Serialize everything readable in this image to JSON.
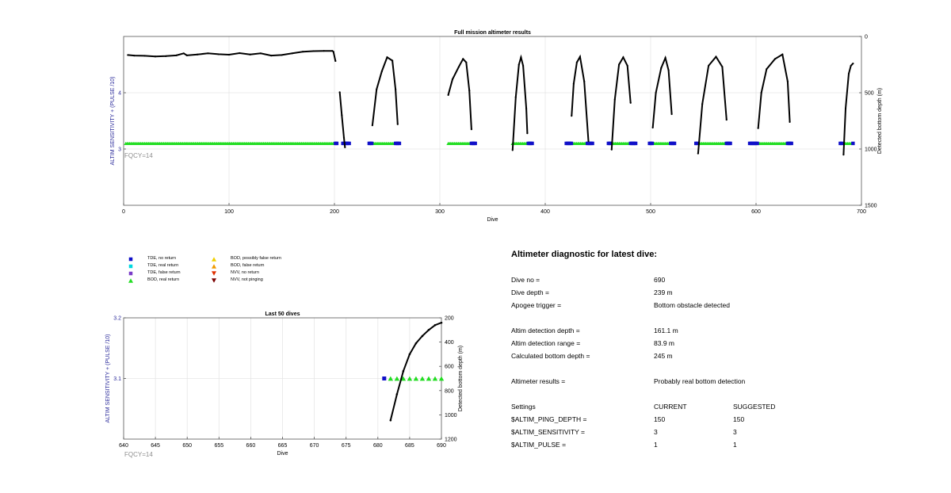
{
  "colors": {
    "tde_no_return": "#1010c8",
    "tde_real_return": "#00d8e0",
    "tde_false_return": "#7a3cc8",
    "bod_real_return": "#22dd22",
    "bod_possibly_false_return": "#f0d000",
    "bod_false_return": "#f09a00",
    "nvv_no_return": "#e03000",
    "nvv_not_pinging": "#7a0000",
    "depth_line": "#000000",
    "axis_blue": "#2a2a9a",
    "fqcy": "#8f8f8f"
  },
  "chart_data": [
    {
      "type": "scatter",
      "title": "Full mission altimeter results",
      "xlabel": "Dive",
      "ylabel": "ALTIM SENSITIVITY + (PULSE /10)",
      "y2label": "Detected bottom depth (m)",
      "xlim": [
        0,
        700
      ],
      "xticks": [
        0,
        100,
        200,
        300,
        400,
        500,
        600,
        700
      ],
      "ylim": [
        2,
        5
      ],
      "yticks": [
        3,
        4
      ],
      "y2lim": [
        0,
        1500
      ],
      "y2ticks": [
        0,
        500,
        1000,
        1500
      ],
      "annotation": "FQCY=14",
      "grid": true,
      "bod_real_return_ranges": [
        [
          2,
          201
        ],
        [
          211,
          212
        ],
        [
          236,
          258
        ],
        [
          308,
          330
        ],
        [
          369,
          384
        ],
        [
          425,
          440
        ],
        [
          463,
          481
        ],
        [
          502,
          519
        ],
        [
          545,
          572
        ],
        [
          602,
          630
        ],
        [
          682,
          692
        ]
      ],
      "tde_no_return_ranges": [
        [
          201,
          203
        ],
        [
          208,
          214
        ],
        [
          233,
          236
        ],
        [
          258,
          262
        ],
        [
          330,
          334
        ],
        [
          384,
          388
        ],
        [
          420,
          425
        ],
        [
          440,
          445
        ],
        [
          460,
          463
        ],
        [
          481,
          486
        ],
        [
          499,
          502
        ],
        [
          519,
          523
        ],
        [
          543,
          545
        ],
        [
          572,
          576
        ],
        [
          594,
          602
        ],
        [
          630,
          634
        ],
        [
          680,
          682
        ],
        [
          692,
          693
        ]
      ],
      "series_depth": [
        {
          "x": [
            4,
            10,
            20,
            30,
            40,
            50,
            57,
            60,
            70,
            80,
            90,
            100,
            110,
            120,
            130,
            140,
            150,
            160,
            170,
            180,
            190,
            198,
            199,
            201
          ],
          "y": [
            165,
            170,
            172,
            178,
            175,
            168,
            150,
            168,
            160,
            150,
            158,
            162,
            148,
            160,
            150,
            170,
            165,
            150,
            135,
            130,
            128,
            128,
            135,
            218
          ]
        },
        {
          "x": [
            205,
            207,
            209,
            210
          ],
          "y": [
            495,
            700,
            900,
            985
          ]
        },
        {
          "x": [
            236,
            240,
            245,
            250,
            255,
            258,
            260
          ],
          "y": [
            790,
            470,
            310,
            185,
            215,
            470,
            780
          ]
        },
        {
          "x": [
            308,
            312,
            318,
            322,
            325,
            328,
            330
          ],
          "y": [
            520,
            380,
            270,
            200,
            230,
            480,
            825
          ]
        },
        {
          "x": [
            369,
            372,
            375,
            377,
            379,
            382,
            383
          ],
          "y": [
            1010,
            540,
            250,
            185,
            260,
            640,
            860
          ]
        },
        {
          "x": [
            425,
            427,
            430,
            433,
            437,
            441
          ],
          "y": [
            705,
            420,
            230,
            180,
            400,
            930
          ]
        },
        {
          "x": [
            463,
            466,
            470,
            474,
            478,
            481
          ],
          "y": [
            1005,
            560,
            250,
            185,
            260,
            590
          ]
        },
        {
          "x": [
            502,
            505,
            510,
            514,
            517,
            520
          ],
          "y": [
            810,
            500,
            280,
            190,
            300,
            690
          ]
        },
        {
          "x": [
            545,
            549,
            555,
            562,
            568,
            572
          ],
          "y": [
            1040,
            600,
            260,
            180,
            270,
            740
          ]
        },
        {
          "x": [
            602,
            605,
            610,
            618,
            625,
            630,
            632
          ],
          "y": [
            815,
            500,
            290,
            200,
            160,
            400,
            760
          ]
        },
        {
          "x": [
            683,
            685,
            688,
            690,
            692
          ],
          "y": [
            1050,
            640,
            330,
            260,
            240
          ]
        }
      ]
    },
    {
      "type": "scatter",
      "title": "Last 50 dives",
      "xlabel": "Dive",
      "ylabel": "ALTIM SENSITIVITY + (PULSE /10)",
      "y2label": "Detected bottom depth (m)",
      "xlim": [
        640,
        690
      ],
      "xticks": [
        640,
        645,
        650,
        655,
        660,
        665,
        670,
        675,
        680,
        685,
        690
      ],
      "ylim": [
        3.0,
        3.2
      ],
      "yticks": [
        3.1,
        3.2
      ],
      "y2lim": [
        200,
        1200
      ],
      "y2ticks": [
        200,
        400,
        600,
        800,
        1000,
        1200
      ],
      "annotation": "FQCY=14",
      "grid": true,
      "tde_no_return": {
        "x": [
          681
        ],
        "y": [
          3.1
        ]
      },
      "bod_real_return": {
        "x": [
          682,
          683,
          684,
          685,
          686,
          687,
          688,
          689,
          690
        ],
        "y": [
          3.1,
          3.1,
          3.1,
          3.1,
          3.1,
          3.1,
          3.1,
          3.1,
          3.1
        ]
      },
      "depth": {
        "x": [
          682,
          683,
          684,
          685,
          686,
          687,
          688,
          689,
          690
        ],
        "y": [
          1045,
          830,
          640,
          500,
          410,
          350,
          300,
          260,
          240
        ]
      }
    }
  ],
  "legend": [
    {
      "label": "TDE, no return",
      "marker": "square",
      "color_key": "tde_no_return"
    },
    {
      "label": "TDE, real return",
      "marker": "square",
      "color_key": "tde_real_return"
    },
    {
      "label": "TDE, false return",
      "marker": "square",
      "color_key": "tde_false_return"
    },
    {
      "label": "BOD, real return",
      "marker": "triangle-up",
      "color_key": "bod_real_return"
    },
    {
      "label": "BOD, possibly false return",
      "marker": "triangle-up",
      "color_key": "bod_possibly_false_return"
    },
    {
      "label": "BOD, false return",
      "marker": "triangle-up",
      "color_key": "bod_false_return"
    },
    {
      "label": "NVV, no return",
      "marker": "triangle-down",
      "color_key": "nvv_no_return"
    },
    {
      "label": "NVV, not pinging",
      "marker": "triangle-down",
      "color_key": "nvv_not_pinging"
    }
  ],
  "diagnostic": {
    "title": "Altimeter diagnostic for latest dive:",
    "dive_no_label": "Dive no =",
    "dive_no": "690",
    "dive_depth_label": "Dive depth =",
    "dive_depth": "239 m",
    "apogee_label": "Apogee trigger =",
    "apogee": "Bottom obstacle detected",
    "det_depth_label": "Altim detection depth =",
    "det_depth": "161.1 m",
    "det_range_label": "Altim detection range =",
    "det_range": "83.9 m",
    "calc_depth_label": "Calculated bottom depth =",
    "calc_depth": "245 m",
    "results_label": "Altimeter results =",
    "results": "Probably real bottom detection",
    "settings_label": "Settings",
    "current_label": "CURRENT",
    "suggested_label": "SUGGESTED",
    "settings": [
      {
        "name": "$ALTIM_PING_DEPTH =",
        "current": "150",
        "suggested": "150"
      },
      {
        "name": "$ALTIM_SENSITIVITY =",
        "current": "3",
        "suggested": "3"
      },
      {
        "name": "$ALTIM_PULSE =",
        "current": "1",
        "suggested": "1"
      }
    ]
  }
}
